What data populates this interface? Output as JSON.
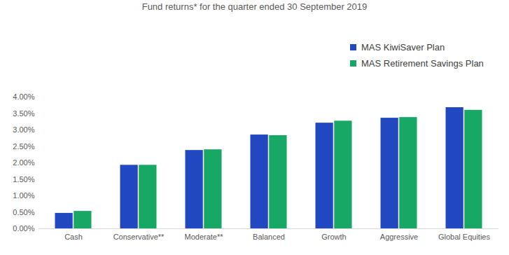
{
  "chart_data": {
    "type": "bar",
    "title": "Fund returns* for the quarter ended 30 September 2019",
    "categories": [
      "Cash",
      "Conservative**",
      "Moderate**",
      "Balanced",
      "Growth",
      "Aggressive",
      "Global Equities"
    ],
    "series": [
      {
        "name": "MAS KiwiSaver Plan",
        "color": "#2148c0",
        "values": [
          0.47,
          1.93,
          2.38,
          2.85,
          3.21,
          3.36,
          3.68
        ]
      },
      {
        "name": "MAS Retirement Savings Plan",
        "color": "#17a865",
        "values": [
          0.53,
          1.93,
          2.4,
          2.83,
          3.27,
          3.38,
          3.6
        ]
      }
    ],
    "ylim": [
      0,
      4
    ],
    "yticks": [
      {
        "value": 0,
        "label": "0.00%"
      },
      {
        "value": 0.5,
        "label": "0.50%"
      },
      {
        "value": 1,
        "label": "1.00%"
      },
      {
        "value": 1.5,
        "label": "1.50%"
      },
      {
        "value": 2,
        "label": "2.00%"
      },
      {
        "value": 2.5,
        "label": "2.50%"
      },
      {
        "value": 3,
        "label": "3.00%"
      },
      {
        "value": 3.5,
        "label": "3.50%"
      },
      {
        "value": 4,
        "label": "4.00%"
      }
    ],
    "grid": false,
    "legend": "top-right"
  }
}
